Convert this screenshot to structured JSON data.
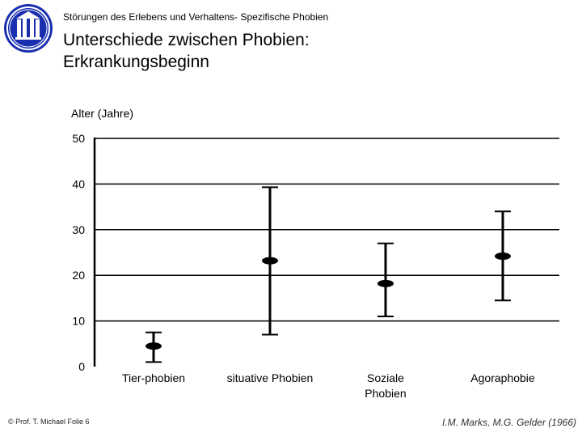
{
  "header": {
    "subtitle": "Störungen des Erlebens und Verhaltens- Spezifische Phobien",
    "title_line1": "Unterschiede zwischen Phobien:",
    "title_line2": "Erkrankungsbeginn"
  },
  "logo": {
    "icon": "university-seal-icon",
    "color": "#1a2fb0"
  },
  "footer": {
    "left": "© Prof. T. Michael Folie 6",
    "right": "I.M. Marks, M.G. Gelder (1966)"
  },
  "chart_data": {
    "type": "errorbar",
    "title": "",
    "ylabel": "Alter (Jahre)",
    "ylim": [
      0,
      50
    ],
    "yticks": [
      0,
      10,
      20,
      30,
      40,
      50
    ],
    "grid": true,
    "categories": [
      {
        "label_lines": [
          "Tier-phobien"
        ],
        "mean": 4.5,
        "low": 1.0,
        "high": 7.5
      },
      {
        "label_lines": [
          "situative Phobien"
        ],
        "mean": 23.2,
        "low": 7.0,
        "high": 39.3
      },
      {
        "label_lines": [
          "Soziale",
          "Phobien"
        ],
        "mean": 18.2,
        "low": 11.0,
        "high": 27.0
      },
      {
        "label_lines": [
          "Agoraphobie"
        ],
        "mean": 24.2,
        "low": 14.5,
        "high": 34.0
      }
    ]
  }
}
